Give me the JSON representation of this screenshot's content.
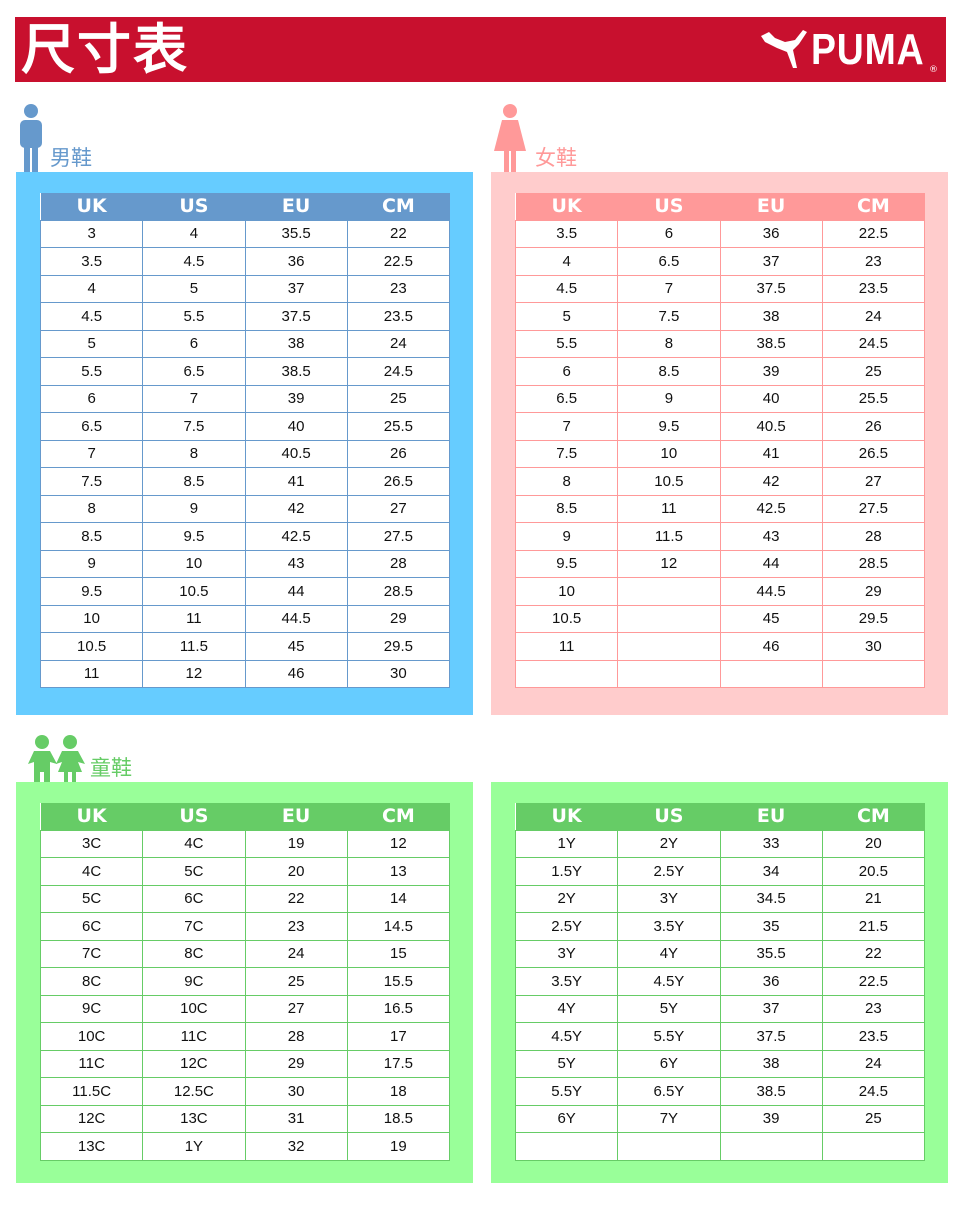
{
  "header": {
    "title": "尺寸表",
    "brand": "PUMA",
    "registered": "®"
  },
  "colors": {
    "header": "#c8102e",
    "men_box": "#66ccff",
    "men_head": "#6699cc",
    "women_box": "#ffcccc",
    "women_head": "#ff9999",
    "kids_box": "#99ff99",
    "kids_head": "#66cc66"
  },
  "columns": [
    "UK",
    "US",
    "EU",
    "CM"
  ],
  "men": {
    "label": "男鞋",
    "icon": "man-icon",
    "rows": [
      [
        "3",
        "4",
        "35.5",
        "22"
      ],
      [
        "3.5",
        "4.5",
        "36",
        "22.5"
      ],
      [
        "4",
        "5",
        "37",
        "23"
      ],
      [
        "4.5",
        "5.5",
        "37.5",
        "23.5"
      ],
      [
        "5",
        "6",
        "38",
        "24"
      ],
      [
        "5.5",
        "6.5",
        "38.5",
        "24.5"
      ],
      [
        "6",
        "7",
        "39",
        "25"
      ],
      [
        "6.5",
        "7.5",
        "40",
        "25.5"
      ],
      [
        "7",
        "8",
        "40.5",
        "26"
      ],
      [
        "7.5",
        "8.5",
        "41",
        "26.5"
      ],
      [
        "8",
        "9",
        "42",
        "27"
      ],
      [
        "8.5",
        "9.5",
        "42.5",
        "27.5"
      ],
      [
        "9",
        "10",
        "43",
        "28"
      ],
      [
        "9.5",
        "10.5",
        "44",
        "28.5"
      ],
      [
        "10",
        "11",
        "44.5",
        "29"
      ],
      [
        "10.5",
        "11.5",
        "45",
        "29.5"
      ],
      [
        "11",
        "12",
        "46",
        "30"
      ]
    ]
  },
  "women": {
    "label": "女鞋",
    "icon": "woman-icon",
    "rows": [
      [
        "3.5",
        "6",
        "36",
        "22.5"
      ],
      [
        "4",
        "6.5",
        "37",
        "23"
      ],
      [
        "4.5",
        "7",
        "37.5",
        "23.5"
      ],
      [
        "5",
        "7.5",
        "38",
        "24"
      ],
      [
        "5.5",
        "8",
        "38.5",
        "24.5"
      ],
      [
        "6",
        "8.5",
        "39",
        "25"
      ],
      [
        "6.5",
        "9",
        "40",
        "25.5"
      ],
      [
        "7",
        "9.5",
        "40.5",
        "26"
      ],
      [
        "7.5",
        "10",
        "41",
        "26.5"
      ],
      [
        "8",
        "10.5",
        "42",
        "27"
      ],
      [
        "8.5",
        "11",
        "42.5",
        "27.5"
      ],
      [
        "9",
        "11.5",
        "43",
        "28"
      ],
      [
        "9.5",
        "12",
        "44",
        "28.5"
      ],
      [
        "10",
        "",
        "44.5",
        "29"
      ],
      [
        "10.5",
        "",
        "45",
        "29.5"
      ],
      [
        "11",
        "",
        "46",
        "30"
      ],
      [
        "",
        "",
        "",
        ""
      ]
    ]
  },
  "kids": {
    "label": "童鞋",
    "icon": "children-icon",
    "left_rows": [
      [
        "3C",
        "4C",
        "19",
        "12"
      ],
      [
        "4C",
        "5C",
        "20",
        "13"
      ],
      [
        "5C",
        "6C",
        "22",
        "14"
      ],
      [
        "6C",
        "7C",
        "23",
        "14.5"
      ],
      [
        "7C",
        "8C",
        "24",
        "15"
      ],
      [
        "8C",
        "9C",
        "25",
        "15.5"
      ],
      [
        "9C",
        "10C",
        "27",
        "16.5"
      ],
      [
        "10C",
        "11C",
        "28",
        "17"
      ],
      [
        "11C",
        "12C",
        "29",
        "17.5"
      ],
      [
        "11.5C",
        "12.5C",
        "30",
        "18"
      ],
      [
        "12C",
        "13C",
        "31",
        "18.5"
      ],
      [
        "13C",
        "1Y",
        "32",
        "19"
      ]
    ],
    "right_rows": [
      [
        "1Y",
        "2Y",
        "33",
        "20"
      ],
      [
        "1.5Y",
        "2.5Y",
        "34",
        "20.5"
      ],
      [
        "2Y",
        "3Y",
        "34.5",
        "21"
      ],
      [
        "2.5Y",
        "3.5Y",
        "35",
        "21.5"
      ],
      [
        "3Y",
        "4Y",
        "35.5",
        "22"
      ],
      [
        "3.5Y",
        "4.5Y",
        "36",
        "22.5"
      ],
      [
        "4Y",
        "5Y",
        "37",
        "23"
      ],
      [
        "4.5Y",
        "5.5Y",
        "37.5",
        "23.5"
      ],
      [
        "5Y",
        "6Y",
        "38",
        "24"
      ],
      [
        "5.5Y",
        "6.5Y",
        "38.5",
        "24.5"
      ],
      [
        "6Y",
        "7Y",
        "39",
        "25"
      ],
      [
        "",
        "",
        "",
        ""
      ]
    ]
  }
}
